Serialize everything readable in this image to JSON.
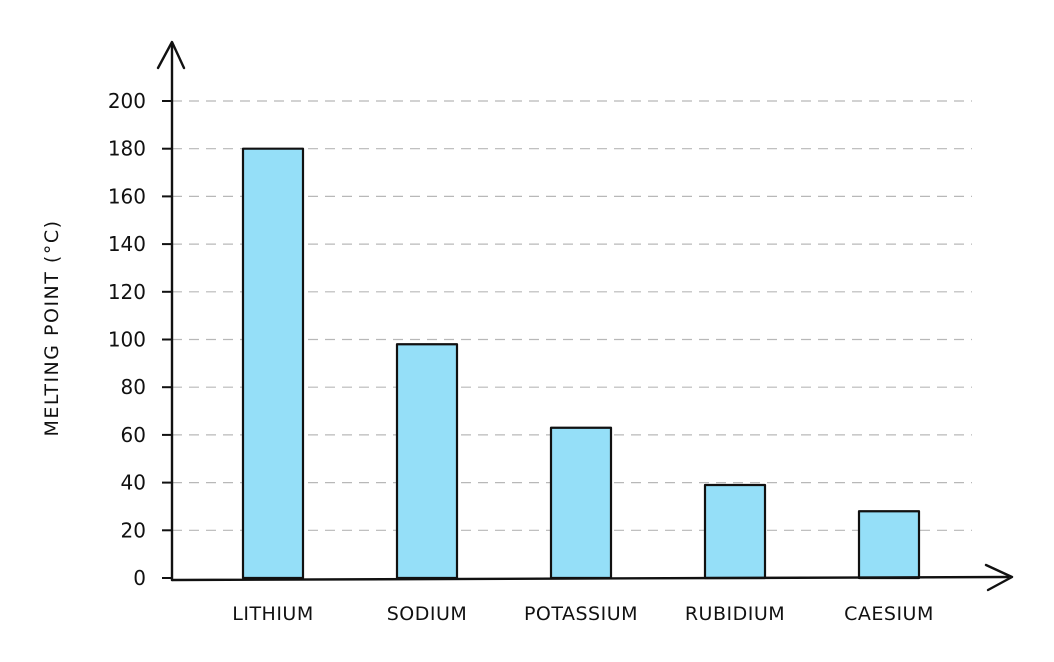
{
  "chart_data": {
    "type": "bar",
    "title": "",
    "xlabel": "",
    "ylabel": "MELTING  POINT (°C)",
    "categories": [
      "LITHIUM",
      "SODIUM",
      "POTASSIUM",
      "RUBIDIUM",
      "CAESIUM"
    ],
    "values": [
      180,
      98,
      63,
      39,
      28
    ],
    "ylim": [
      0,
      200
    ],
    "yticks": [
      0,
      20,
      40,
      60,
      80,
      100,
      120,
      140,
      160,
      180,
      200
    ],
    "grid": "horizontal dashed",
    "legend": "none",
    "colors": {
      "bar_fill": "#95dff8",
      "bar_outline": "#111111",
      "grid": "#b8b8b8",
      "axis": "#111111"
    }
  }
}
